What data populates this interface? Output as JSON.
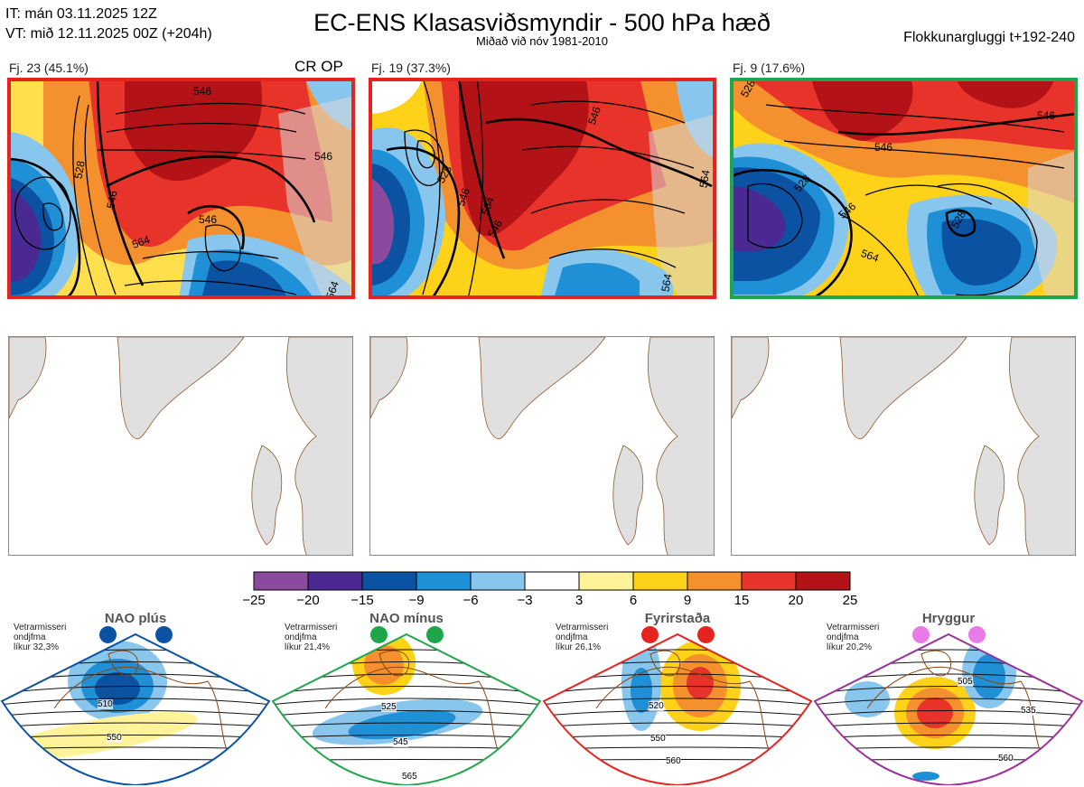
{
  "header": {
    "it_line": "IT: mán 03.11.2025 12Z",
    "vt_line": "VT: mið 12.11.2025 00Z  (+204h)",
    "title": "EC-ENS Klasasviðsmyndir - 500 hPa hæð",
    "subtitle": "Miðað við nóv 1981-2010",
    "window": "Flokkunargluggi t+192-240"
  },
  "clusters": [
    {
      "label": "Fj. 23 (45.1%)",
      "frame_color": "#e52420",
      "extra": "CR OP",
      "contours": [
        "546",
        "528",
        "546",
        "546",
        "564",
        "546",
        "564"
      ]
    },
    {
      "label": "Fj. 19 (37.3%)",
      "frame_color": "#e52420",
      "extra": "",
      "contours": [
        "546",
        "528",
        "546",
        "564",
        "546",
        "564",
        "564"
      ]
    },
    {
      "label": "Fj. 9 (17.6%)",
      "frame_color": "#1fa64a",
      "extra": "",
      "contours": [
        "528",
        "546",
        "528",
        "546",
        "546",
        "528",
        "564"
      ]
    }
  ],
  "colorbar": {
    "labels": [
      "−25",
      "−20",
      "−15",
      "−9",
      "−6",
      "−3",
      "3",
      "6",
      "9",
      "15",
      "20",
      "25"
    ],
    "colors": [
      "#8c4a9e",
      "#4a2a92",
      "#0b52a3",
      "#1f8fd6",
      "#88c6ee",
      "#ffffff",
      "#fff39a",
      "#ffd21a",
      "#f4902d",
      "#e8332a",
      "#b31217"
    ]
  },
  "regimes": [
    {
      "name": "NAO plús",
      "note": [
        "Vetrarmisseri",
        "ondjfma",
        "líkur 32,3%"
      ],
      "color": "#0b52a3",
      "contours": [
        "510",
        "550"
      ]
    },
    {
      "name": "NAO mínus",
      "note": [
        "Vetrarmisseri",
        "ondjfma",
        "líkur 21,4%"
      ],
      "color": "#1fa64a",
      "contours": [
        "525",
        "545",
        "565"
      ]
    },
    {
      "name": "Fyrirstaða",
      "note": [
        "Vetrarmisseri",
        "ondjfma",
        "líkur 26,1%"
      ],
      "color": "#e52420",
      "contours": [
        "520",
        "550",
        "560"
      ]
    },
    {
      "name": "Hryggur",
      "note": [
        "Vetrarmisseri",
        "ondjfma",
        "líkur 20,2%"
      ],
      "color": "#9b2f9b",
      "contours": [
        "505",
        "535",
        "560"
      ]
    }
  ]
}
